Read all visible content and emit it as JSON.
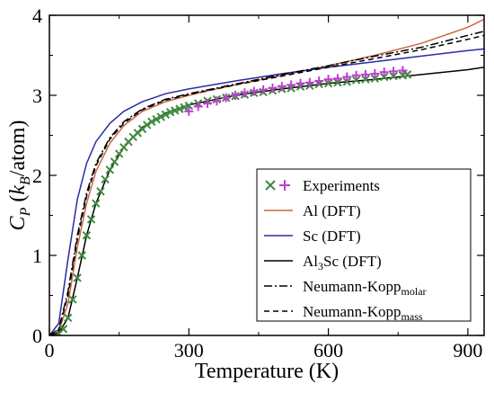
{
  "chart_data": {
    "type": "line",
    "xlabel": "Temperature (K)",
    "ylabel": {
      "main": "C",
      "sub": "P",
      "open": " (",
      "italic": "k",
      "italic_sub": "B",
      "rest": "/atom)"
    },
    "xlim": [
      0,
      935
    ],
    "ylim": [
      0,
      4
    ],
    "xticks": [
      0,
      300,
      600,
      900
    ],
    "yticks": [
      0,
      1,
      2,
      3,
      4
    ],
    "legend_position": "lower-right",
    "series": [
      {
        "name": "Al (DFT)",
        "style": "solid",
        "color": "#cc6644",
        "x": [
          0,
          20,
          40,
          60,
          80,
          100,
          130,
          160,
          200,
          250,
          300,
          350,
          400,
          500,
          600,
          700,
          800,
          900,
          935
        ],
        "y": [
          0,
          0.05,
          0.4,
          1.1,
          1.65,
          2.05,
          2.4,
          2.62,
          2.8,
          2.92,
          3.0,
          3.07,
          3.13,
          3.25,
          3.37,
          3.5,
          3.65,
          3.85,
          3.95
        ]
      },
      {
        "name": "Sc (DFT)",
        "style": "solid",
        "color": "#2a2aa8",
        "x": [
          0,
          20,
          40,
          60,
          80,
          100,
          130,
          160,
          200,
          250,
          300,
          400,
          500,
          600,
          700,
          800,
          900,
          935
        ],
        "y": [
          0,
          0.15,
          0.95,
          1.7,
          2.15,
          2.42,
          2.65,
          2.8,
          2.92,
          3.02,
          3.08,
          3.18,
          3.27,
          3.35,
          3.42,
          3.49,
          3.56,
          3.58
        ]
      },
      {
        "name": "Al3Sc (DFT)",
        "style": "solid",
        "color": "#000000",
        "x": [
          0,
          20,
          40,
          60,
          80,
          100,
          130,
          160,
          200,
          250,
          300,
          400,
          500,
          600,
          700,
          800,
          900,
          935
        ],
        "y": [
          0,
          0.03,
          0.22,
          0.72,
          1.25,
          1.65,
          2.07,
          2.35,
          2.6,
          2.78,
          2.88,
          3.0,
          3.08,
          3.15,
          3.2,
          3.26,
          3.32,
          3.35
        ]
      },
      {
        "name": "Neumann-Kopp_molar",
        "style": "dashdot",
        "color": "#000000",
        "x": [
          0,
          20,
          40,
          60,
          80,
          100,
          130,
          160,
          200,
          250,
          300,
          400,
          500,
          600,
          700,
          800,
          900,
          935
        ],
        "y": [
          0,
          0.08,
          0.55,
          1.25,
          1.78,
          2.15,
          2.47,
          2.67,
          2.83,
          2.95,
          3.02,
          3.14,
          3.26,
          3.37,
          3.49,
          3.6,
          3.75,
          3.8
        ]
      },
      {
        "name": "Neumann-Kopp_mass",
        "style": "dashed",
        "color": "#000000",
        "x": [
          0,
          20,
          40,
          60,
          80,
          100,
          130,
          160,
          200,
          250,
          300,
          400,
          500,
          600,
          700,
          800,
          900,
          935
        ],
        "y": [
          0,
          0.07,
          0.5,
          1.2,
          1.74,
          2.12,
          2.45,
          2.65,
          2.82,
          2.94,
          3.01,
          3.13,
          3.24,
          3.35,
          3.46,
          3.57,
          3.7,
          3.75
        ]
      }
    ],
    "experiments": {
      "name": "Experiments",
      "markers": [
        {
          "symbol": "x",
          "color": "#3f8a3f"
        },
        {
          "symbol": "+",
          "color": "#c23bd6"
        }
      ],
      "x_points": {
        "x": [
          20,
          30,
          40,
          50,
          60,
          70,
          80,
          90,
          100,
          110,
          120,
          130,
          140,
          150,
          160,
          170,
          180,
          190,
          200,
          210,
          220,
          230,
          240,
          250,
          260,
          270,
          280,
          290,
          300,
          320,
          340,
          360,
          380,
          400,
          420,
          440,
          460,
          480,
          500,
          520,
          540,
          560,
          580,
          600,
          620,
          640,
          660,
          680,
          700,
          720,
          740,
          760,
          770
        ],
        "y": [
          0.02,
          0.08,
          0.22,
          0.45,
          0.72,
          1.0,
          1.25,
          1.45,
          1.65,
          1.8,
          1.95,
          2.07,
          2.17,
          2.27,
          2.35,
          2.42,
          2.48,
          2.53,
          2.58,
          2.63,
          2.67,
          2.7,
          2.73,
          2.76,
          2.79,
          2.81,
          2.83,
          2.85,
          2.87,
          2.9,
          2.93,
          2.95,
          2.97,
          2.99,
          3.01,
          3.03,
          3.04,
          3.06,
          3.08,
          3.09,
          3.11,
          3.12,
          3.14,
          3.15,
          3.16,
          3.17,
          3.19,
          3.2,
          3.21,
          3.23,
          3.24,
          3.25,
          3.26
        ]
      },
      "plus_points": {
        "x": [
          300,
          320,
          340,
          360,
          380,
          400,
          420,
          440,
          460,
          480,
          500,
          520,
          540,
          560,
          580,
          600,
          620,
          640,
          660,
          680,
          700,
          720,
          740,
          760
        ],
        "y": [
          2.8,
          2.86,
          2.9,
          2.93,
          2.97,
          3.0,
          3.03,
          3.05,
          3.07,
          3.09,
          3.11,
          3.13,
          3.15,
          3.16,
          3.18,
          3.2,
          3.21,
          3.23,
          3.25,
          3.26,
          3.27,
          3.29,
          3.3,
          3.31
        ]
      }
    },
    "legend": {
      "experiments": "Experiments",
      "al": "Al (DFT)",
      "sc": "Sc (DFT)",
      "al3sc_main": "Al",
      "al3sc_sub": "3",
      "al3sc_rest": "Sc (DFT)",
      "nk_molar_main": "Neumann-Kopp",
      "nk_molar_sub": "molar",
      "nk_mass_main": "Neumann-Kopp",
      "nk_mass_sub": "mass"
    }
  }
}
